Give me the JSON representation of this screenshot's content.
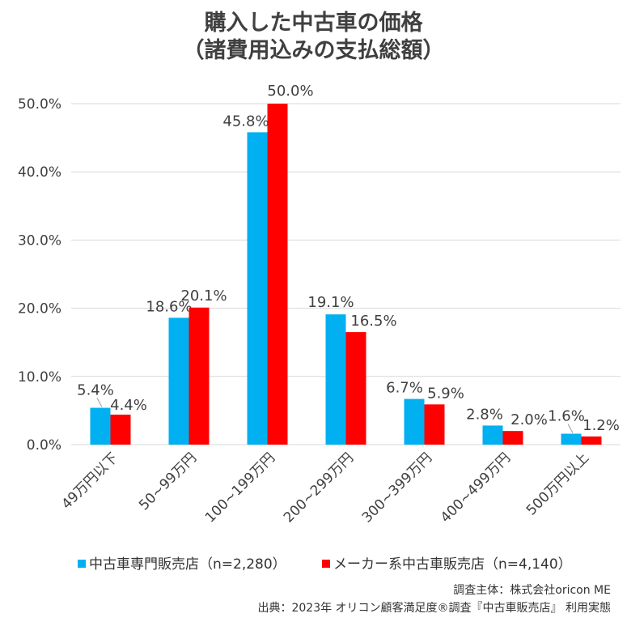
{
  "title": {
    "line1": "購入した中古車の価格",
    "line2": "（諸費用込みの支払総額）"
  },
  "colors": {
    "series1": "#00B0F0",
    "series2": "#FF0000",
    "grid": "#D9D9D9",
    "text": "#404040"
  },
  "chart_data": {
    "type": "bar",
    "title": "購入した中古車の価格（諸費用込みの支払総額）",
    "xlabel": "",
    "ylabel": "",
    "ylim": [
      0,
      50
    ],
    "yticks": [
      "0.0%",
      "10.0%",
      "20.0%",
      "30.0%",
      "40.0%",
      "50.0%"
    ],
    "categories": [
      "49万円以下",
      "50~99万円",
      "100~199万円",
      "200~299万円",
      "300~399万円",
      "400~499万円",
      "500万円以上"
    ],
    "series": [
      {
        "name": "中古車専門販売店（n=2,280）",
        "values": [
          5.4,
          18.6,
          45.8,
          19.1,
          6.7,
          2.8,
          1.6
        ],
        "labels": [
          "5.4%",
          "18.6%",
          "45.8%",
          "19.1%",
          "6.7%",
          "2.8%",
          "1.6%"
        ]
      },
      {
        "name": "メーカー系中古車販売店（n=4,140）",
        "values": [
          4.4,
          20.1,
          50.0,
          16.5,
          5.9,
          2.0,
          1.2
        ],
        "labels": [
          "4.4%",
          "20.1%",
          "50.0%",
          "16.5%",
          "5.9%",
          "2.0%",
          "1.2%"
        ]
      }
    ],
    "legend_position": "bottom"
  },
  "legend": {
    "series1": "中古車専門販売店（n=2,280）",
    "series2": "メーカー系中古車販売店（n=4,140）"
  },
  "credits": {
    "survey": "調査主体：株式会社oricon ME",
    "source": "出典：2023年 オリコン顧客満足度®調査『中古車販売店』 利用実態"
  }
}
